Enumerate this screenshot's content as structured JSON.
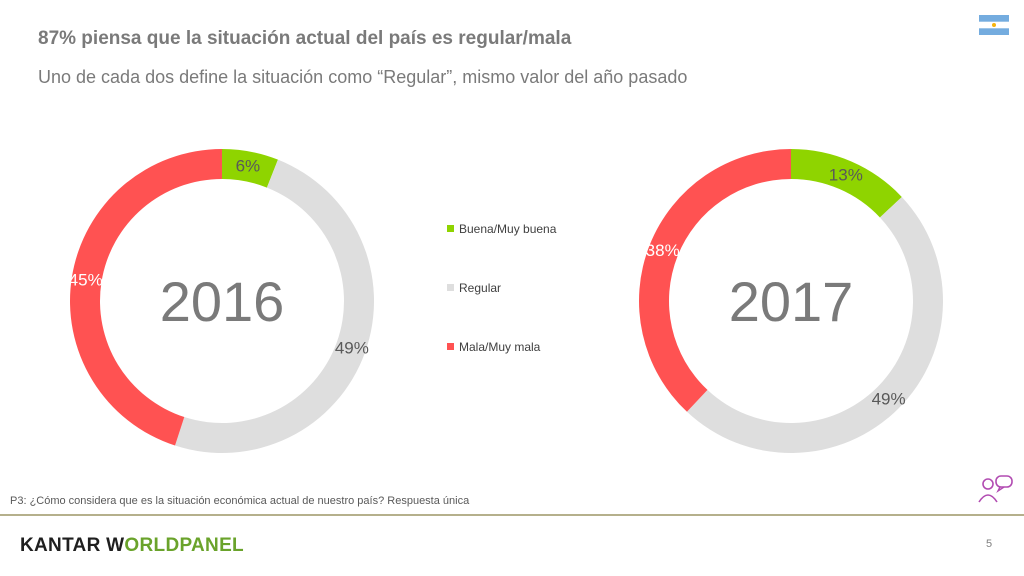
{
  "header": {
    "title": "87% piensa que la situación actual del país es regular/mala",
    "subtitle": "Uno de cada dos define la situación como “Regular”, mismo valor del año pasado"
  },
  "flag_icon": "argentina-flag-icon",
  "chart_data": [
    {
      "type": "pie",
      "title": "2016",
      "categories": [
        "Buena/Muy buena",
        "Regular",
        "Mala/Muy mala"
      ],
      "values": [
        6,
        49,
        45
      ],
      "labels": [
        "6%",
        "49%",
        "45%"
      ],
      "colors": [
        "#8fd400",
        "#dedede",
        "#ff5252"
      ]
    },
    {
      "type": "pie",
      "title": "2017",
      "categories": [
        "Buena/Muy buena",
        "Regular",
        "Mala/Muy mala"
      ],
      "values": [
        13,
        49,
        38
      ],
      "labels": [
        "13%",
        "49%",
        "38%"
      ],
      "colors": [
        "#8fd400",
        "#dedede",
        "#ff5252"
      ]
    }
  ],
  "legend": {
    "items": [
      {
        "label": "Buena/Muy buena",
        "color": "#8fd400"
      },
      {
        "label": "Regular",
        "color": "#dedede"
      },
      {
        "label": "Mala/Muy mala",
        "color": "#ff5252"
      }
    ]
  },
  "footer": {
    "question": "P3: ¿Cómo considera que es la situación económica actual de nuestro país? Respuesta única",
    "logo_part1": "KANTAR W",
    "logo_o": "O",
    "logo_part2": "RLDPANEL",
    "page_number": "5"
  },
  "icons": {
    "chat": "chat-people-icon"
  },
  "colors": {
    "text": "#7a7a7a",
    "logo_green": "#6aa32b",
    "rule": "#b5b08c"
  }
}
